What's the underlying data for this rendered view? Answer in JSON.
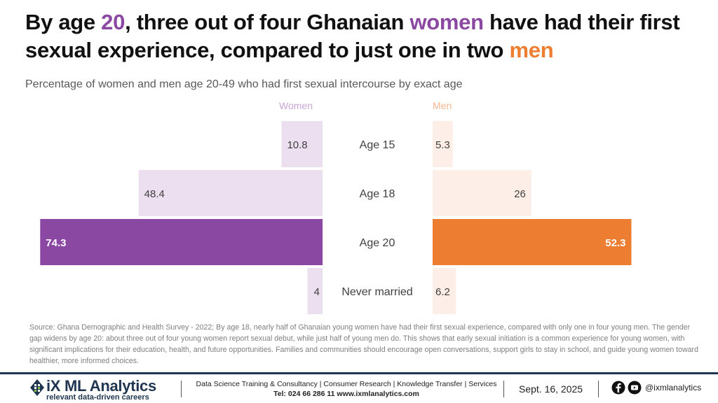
{
  "title": {
    "parts": [
      {
        "text": "By age ",
        "style": "normal"
      },
      {
        "text": "20",
        "style": "women"
      },
      {
        "text": ", three out of four Ghanaian ",
        "style": "normal"
      },
      {
        "text": "women",
        "style": "women"
      },
      {
        "text": " have had their first sexual experience, compared to just one in two ",
        "style": "normal"
      },
      {
        "text": "men",
        "style": "men"
      }
    ]
  },
  "subtitle": "Percentage of women and men age 20-49 who had first sexual intercourse by exact age",
  "colors": {
    "women_strong": "#8b48a2",
    "women_light": "#ebdff0",
    "men_strong": "#ed7d31",
    "men_light": "#fdefe7"
  },
  "chart_data": {
    "type": "bar",
    "orientation": "horizontal-butterfly",
    "title": "Percentage of women and men age 20-49 who had first sexual intercourse by exact age",
    "categories": [
      "Age 15",
      "Age 18",
      "Age 20",
      "Never married"
    ],
    "series": [
      {
        "name": "Women",
        "values": [
          10.8,
          48.4,
          74.3,
          4
        ],
        "highlight_index": 2,
        "side": "left"
      },
      {
        "name": "Men",
        "values": [
          5.3,
          26,
          52.3,
          6.2
        ],
        "highlight_index": 2,
        "side": "right"
      }
    ],
    "xlabel": "",
    "ylabel": "",
    "xlim": [
      0,
      80
    ],
    "grid": false,
    "legend": "top"
  },
  "source": "Source: Ghana Demographic and Health Survey - 2022; By age 18, nearly half of Ghanaian young women have had their first sexual experience, compared with only one in four young men. The gender gap widens by age 20: about three out of four young women report sexual debut, while just half of young men do. This shows that early sexual initiation is a common experience for young women, with significant implications for their education, health, and future opportunities. Families and communities should encourage open conversations, support girls to stay in school, and guide young women toward healthier, more informed choices.",
  "footer": {
    "logo_name": "iX ML Analytics",
    "logo_tagline": "relevant data-driven careers",
    "services": "Data Science Training & Consultancy | Consumer Research | Knowledge Transfer | Services",
    "contact": "Tel: 024 66 286 11  www.ixmlanalytics.com",
    "date": "Sept. 16, 2025",
    "social_icons": [
      "facebook-icon",
      "youtube-icon"
    ],
    "handle": "@ixmlanalytics"
  }
}
